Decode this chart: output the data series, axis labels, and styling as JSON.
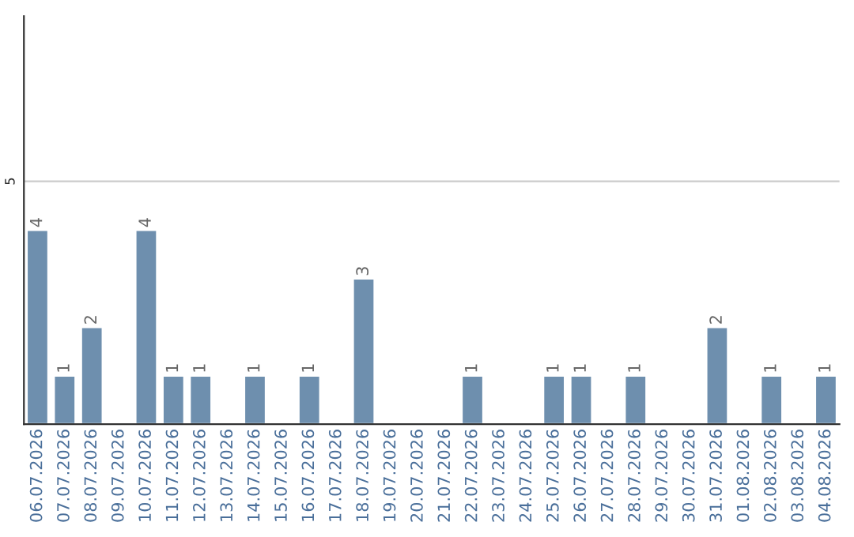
{
  "chart_data": {
    "type": "bar",
    "categories": [
      "06.07.2026",
      "07.07.2026",
      "08.07.2026",
      "09.07.2026",
      "10.07.2026",
      "11.07.2026",
      "12.07.2026",
      "13.07.2026",
      "14.07.2026",
      "15.07.2026",
      "16.07.2026",
      "17.07.2026",
      "18.07.2026",
      "19.07.2026",
      "20.07.2026",
      "21.07.2026",
      "22.07.2026",
      "23.07.2026",
      "24.07.2026",
      "25.07.2026",
      "26.07.2026",
      "27.07.2026",
      "28.07.2026",
      "29.07.2026",
      "30.07.2026",
      "31.07.2026",
      "01.08.2026",
      "02.08.2026",
      "03.08.2026",
      "04.08.2026"
    ],
    "values": [
      4,
      1,
      2,
      null,
      4,
      1,
      1,
      null,
      1,
      null,
      1,
      null,
      3,
      null,
      null,
      null,
      1,
      null,
      null,
      1,
      1,
      null,
      1,
      null,
      null,
      2,
      null,
      1,
      null,
      1
    ],
    "value_labels": [
      "4",
      "1",
      "2",
      null,
      "4",
      "1",
      "1",
      null,
      "1",
      null,
      "1",
      null,
      "3",
      null,
      null,
      null,
      "1",
      null,
      null,
      "1",
      "1",
      null,
      "1",
      null,
      null,
      "2",
      null,
      "1",
      null,
      "1"
    ],
    "color": "#6e8fae",
    "ylim": [
      0,
      8.4
    ],
    "yticks": [
      5
    ],
    "grid": "y"
  }
}
